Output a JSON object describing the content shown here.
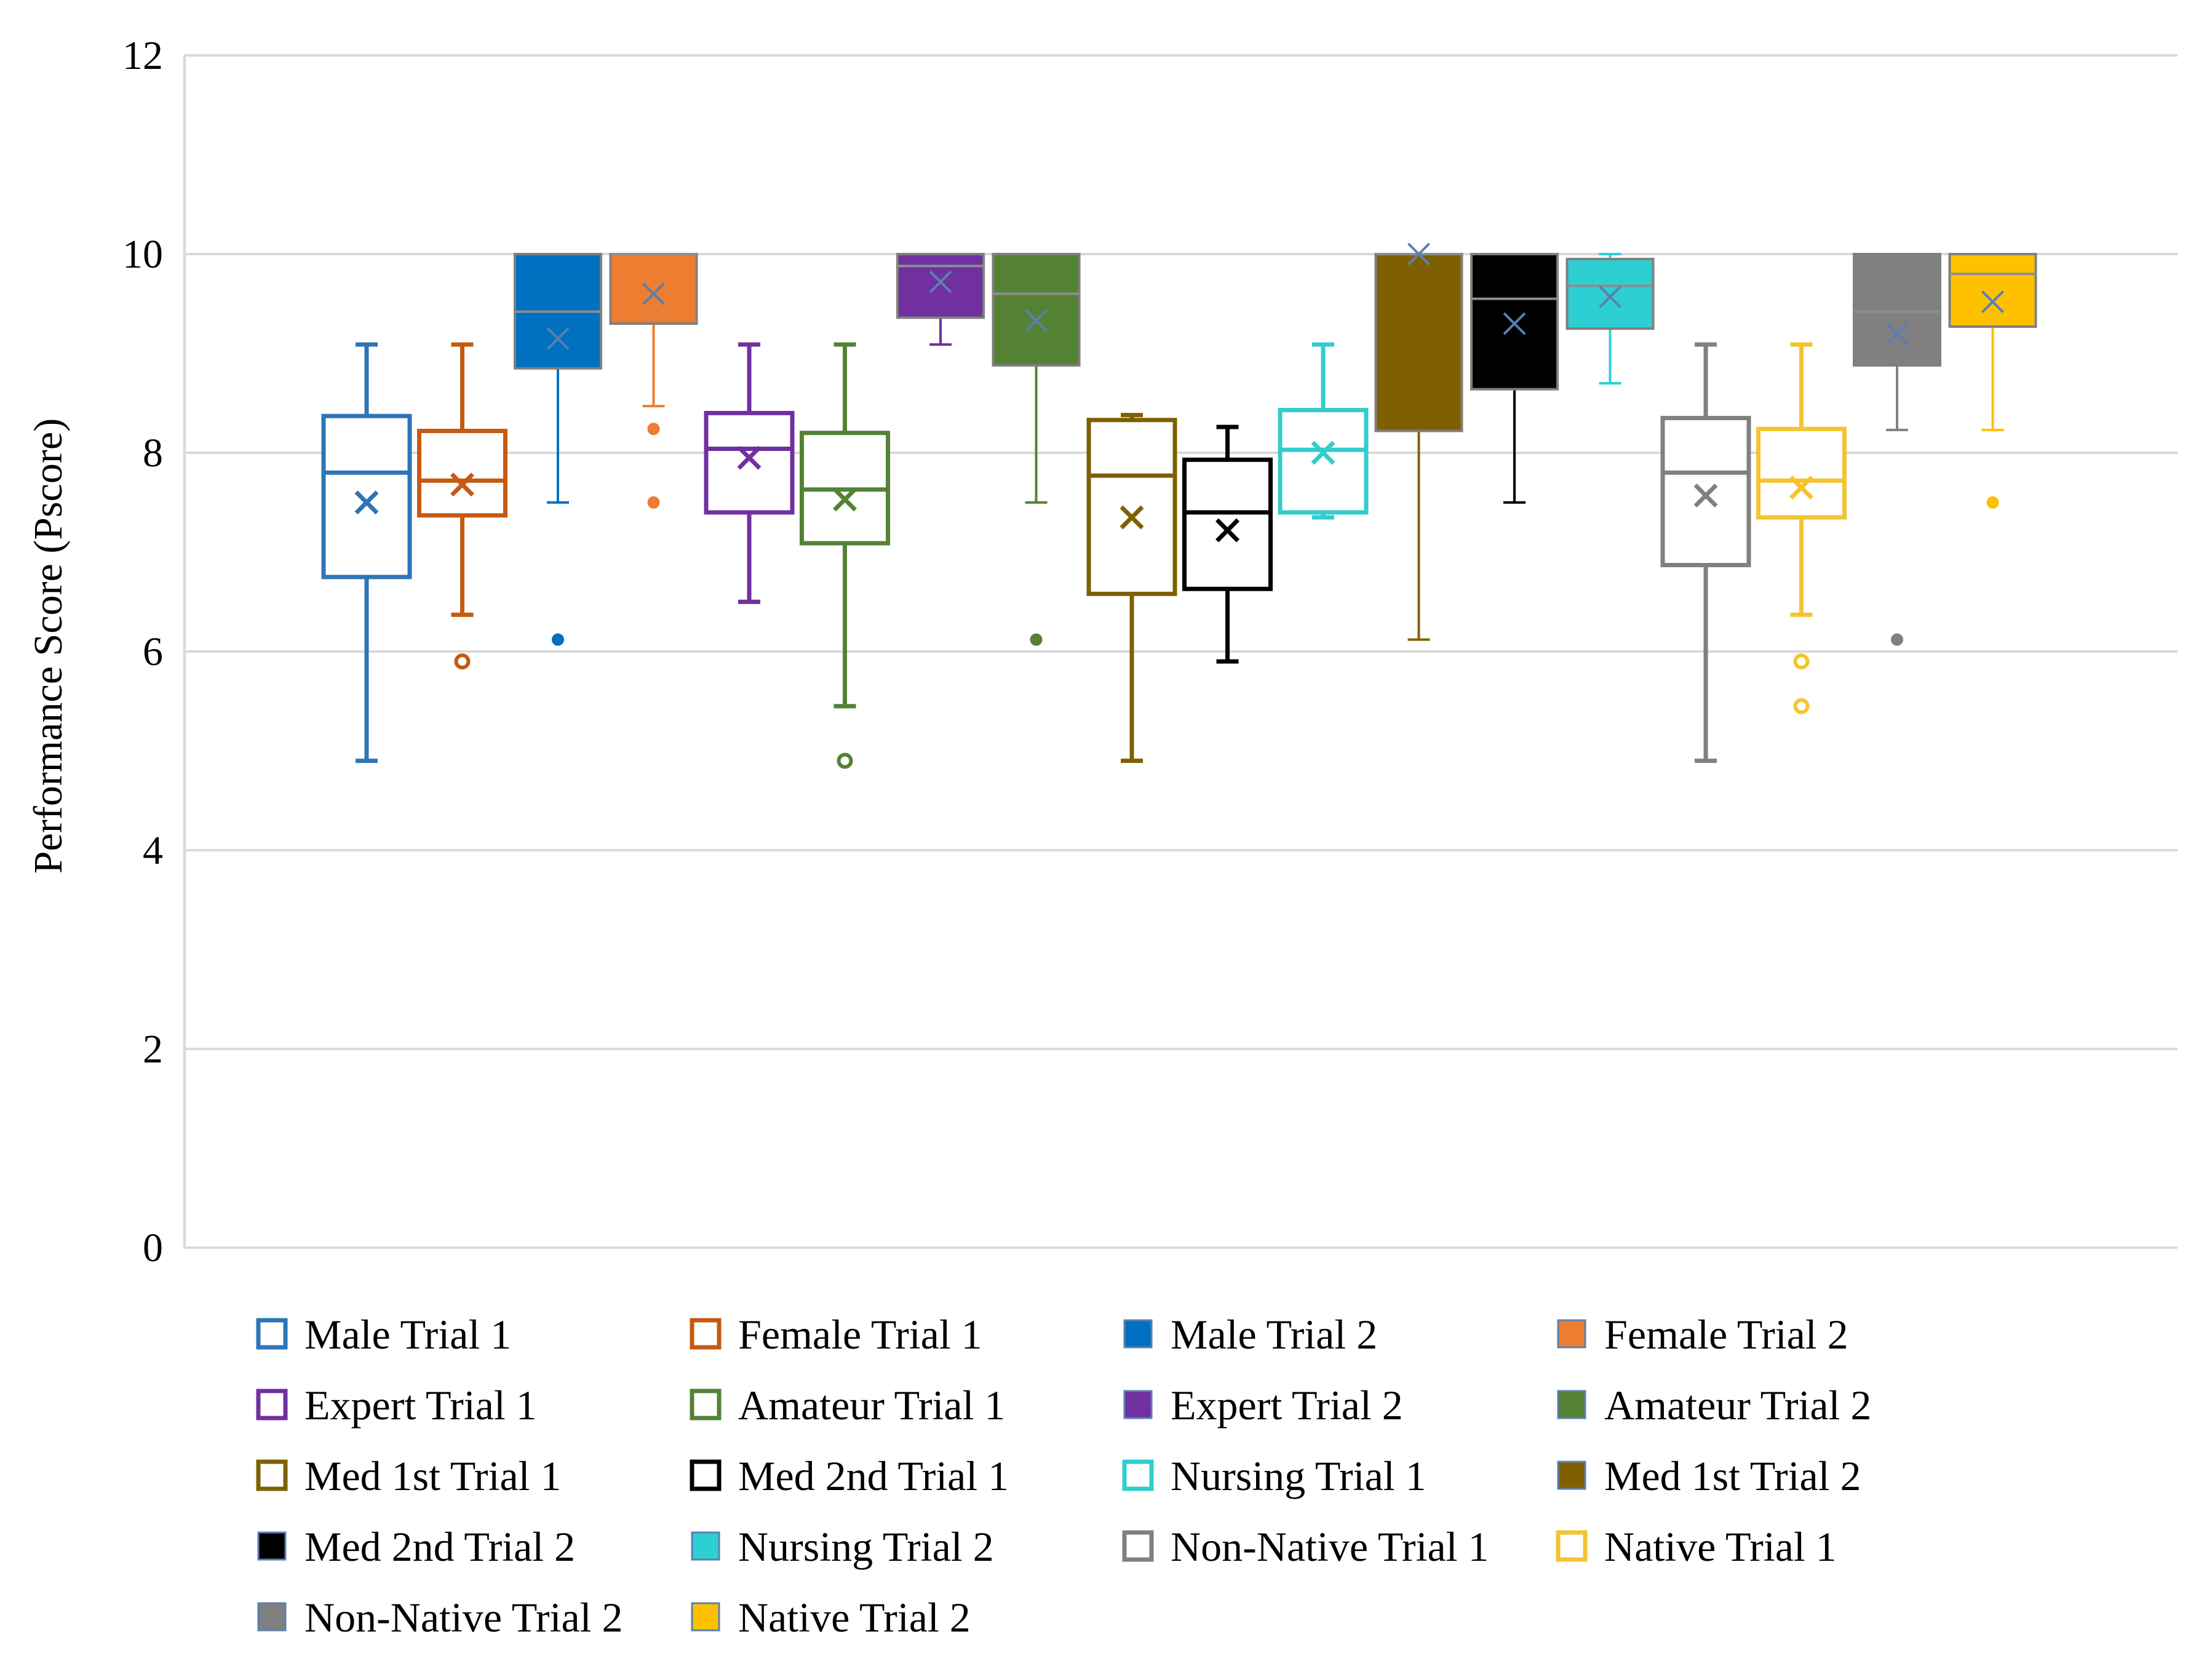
{
  "chart_data": {
    "type": "box",
    "title": "",
    "xlabel": "",
    "ylabel": "Performance Score (Pscore)",
    "ylim": [
      0,
      12
    ],
    "yticks": [
      0,
      2,
      4,
      6,
      8,
      10,
      12
    ],
    "grid": true,
    "legend_position": "bottom",
    "series": [
      {
        "name": "Male Trial 1",
        "style": "hollow",
        "color": "#2E75B6",
        "min": 4.9,
        "q1": 6.75,
        "median": 7.8,
        "q3": 8.37,
        "max": 9.09,
        "mean": 7.5,
        "outliers": []
      },
      {
        "name": "Female Trial 1",
        "style": "hollow",
        "color": "#C55A11",
        "min": 6.37,
        "q1": 7.37,
        "median": 7.72,
        "q3": 8.22,
        "max": 9.09,
        "mean": 7.68,
        "outliers": [
          5.9
        ]
      },
      {
        "name": "Male Trial 2",
        "style": "filled",
        "color": "#0070C0",
        "min": 7.5,
        "q1": 8.85,
        "median": 9.42,
        "q3": 10,
        "max": 10,
        "mean": 9.15,
        "outliers": [
          6.12
        ]
      },
      {
        "name": "Female Trial 2",
        "style": "filled",
        "color": "#ED7D31",
        "min": 8.47,
        "q1": 9.3,
        "median": 10,
        "q3": 10,
        "max": 10,
        "mean": 9.6,
        "outliers": [
          8.24,
          7.5
        ]
      },
      {
        "name": "Expert Trial 1",
        "style": "hollow",
        "color": "#7030A0",
        "min": 6.5,
        "q1": 7.4,
        "median": 8.04,
        "q3": 8.4,
        "max": 9.09,
        "mean": 7.95,
        "outliers": []
      },
      {
        "name": "Amateur Trial 1",
        "style": "hollow",
        "color": "#548235",
        "min": 5.45,
        "q1": 7.09,
        "median": 7.63,
        "q3": 8.2,
        "max": 9.09,
        "mean": 7.53,
        "outliers": [
          4.9
        ]
      },
      {
        "name": "Expert Trial 2",
        "style": "filled",
        "color": "#7030A0",
        "min": 9.09,
        "q1": 9.36,
        "median": 9.88,
        "q3": 10,
        "max": 10,
        "mean": 9.72,
        "outliers": []
      },
      {
        "name": "Amateur Trial 2",
        "style": "filled",
        "color": "#548235",
        "min": 7.5,
        "q1": 8.88,
        "median": 9.6,
        "q3": 10,
        "max": 10,
        "mean": 9.33,
        "outliers": [
          6.12
        ]
      },
      {
        "name": "Med 1st Trial 1",
        "style": "hollow",
        "color": "#7F6000",
        "min": 4.9,
        "q1": 6.58,
        "median": 7.77,
        "q3": 8.33,
        "max": 8.38,
        "mean": 7.35,
        "outliers": []
      },
      {
        "name": "Med 2nd Trial 1",
        "style": "hollow",
        "color": "#000000",
        "min": 5.9,
        "q1": 6.63,
        "median": 7.4,
        "q3": 7.93,
        "max": 8.26,
        "mean": 7.22,
        "outliers": []
      },
      {
        "name": "Nursing Trial 1",
        "style": "hollow",
        "color": "#33CCCC",
        "min": 7.35,
        "q1": 7.4,
        "median": 8.03,
        "q3": 8.43,
        "max": 9.09,
        "mean": 8.0,
        "outliers": []
      },
      {
        "name": "Med 1st Trial 2",
        "style": "filled",
        "color": "#7F6000",
        "min": 6.12,
        "q1": 8.22,
        "median": 10,
        "q3": 10,
        "max": 10,
        "mean": 10,
        "outliers": []
      },
      {
        "name": "Med 2nd Trial 2",
        "style": "filled",
        "color": "#000000",
        "min": 7.5,
        "q1": 8.64,
        "median": 9.55,
        "q3": 10,
        "max": 10,
        "mean": 9.3,
        "outliers": []
      },
      {
        "name": "Nursing Trial 2",
        "style": "filled",
        "color": "#2ECFD2",
        "min": 8.7,
        "q1": 9.25,
        "median": 9.68,
        "q3": 9.95,
        "max": 10,
        "mean": 9.57,
        "outliers": []
      },
      {
        "name": "Non-Native Trial 1",
        "style": "hollow",
        "color": "#808080",
        "min": 4.9,
        "q1": 6.87,
        "median": 7.8,
        "q3": 8.35,
        "max": 9.09,
        "mean": 7.57,
        "outliers": []
      },
      {
        "name": "Native Trial 1",
        "style": "hollow",
        "color": "#F4C430",
        "min": 6.37,
        "q1": 7.35,
        "median": 7.72,
        "q3": 8.24,
        "max": 9.09,
        "mean": 7.65,
        "outliers": [
          5.9,
          5.45
        ]
      },
      {
        "name": "Non-Native Trial 2",
        "style": "filled",
        "color": "#808080",
        "min": 8.23,
        "q1": 8.88,
        "median": 9.42,
        "q3": 10,
        "max": 10,
        "mean": 9.2,
        "outliers": [
          6.12
        ]
      },
      {
        "name": "Native Trial 2",
        "style": "filled",
        "color": "#FFC000",
        "min": 8.23,
        "q1": 9.27,
        "median": 9.8,
        "q3": 10,
        "max": 10,
        "mean": 9.52,
        "outliers": [
          7.5
        ]
      }
    ]
  },
  "legend_columns": 4
}
